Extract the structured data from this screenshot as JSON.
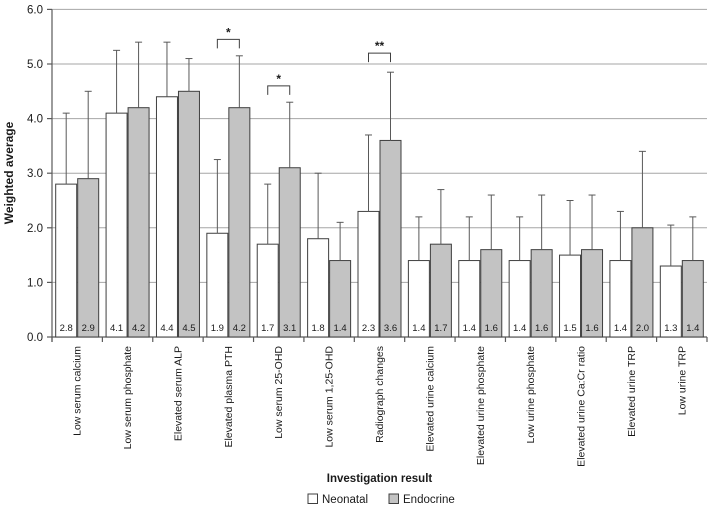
{
  "chart_data": {
    "type": "bar",
    "title": "",
    "xlabel": "Investigation result",
    "ylabel": "Weighted average",
    "ylim": [
      0,
      6
    ],
    "ytick_interval": 1.0,
    "ytick_labels": [
      "0.0",
      "1.0",
      "2.0",
      "3.0",
      "4.0",
      "5.0",
      "6.0"
    ],
    "grid": "horizontal",
    "legend_position": "bottom-center",
    "value_label_format": "one-decimal-inside-bar-bottom",
    "categories": [
      "Low serum calcium",
      "Low serum phosphate",
      "Elevated serum ALP",
      "Elevated plasma PTH",
      "Low serum 25-OHD",
      "Low serum 1,25-OHD",
      "Radiograph changes",
      "Elevated urine calcium",
      "Elevated urine phosphate",
      "Low urine phosphate",
      "Elevated urine Ca:Cr ratio",
      "Elevated urine TRP",
      "Low urine TRP"
    ],
    "series": [
      {
        "name": "Neonatal",
        "fill": "#ffffff",
        "values": [
          2.8,
          4.1,
          4.4,
          1.9,
          1.7,
          1.8,
          2.3,
          1.4,
          1.4,
          1.4,
          1.5,
          1.4,
          1.3
        ],
        "error_bar_tops": [
          4.1,
          5.25,
          5.4,
          3.25,
          2.8,
          3.0,
          3.7,
          2.2,
          2.2,
          2.2,
          2.5,
          2.3,
          2.05
        ]
      },
      {
        "name": "Endocrine",
        "fill": "#c3c3c3",
        "values": [
          2.9,
          4.2,
          4.5,
          4.2,
          3.1,
          1.4,
          3.6,
          1.7,
          1.6,
          1.6,
          1.6,
          2.0,
          1.4
        ],
        "error_bar_tops": [
          4.5,
          5.4,
          5.1,
          5.15,
          4.3,
          2.1,
          4.85,
          2.7,
          2.6,
          2.6,
          2.6,
          3.4,
          2.2
        ]
      }
    ],
    "significance_markers": [
      {
        "category": "Elevated plasma PTH",
        "category_index": 3,
        "label": "*",
        "bracket_top": 5.45
      },
      {
        "category": "Low serum 25-OHD",
        "category_index": 4,
        "label": "*",
        "bracket_top": 4.6
      },
      {
        "category": "Radiograph changes",
        "category_index": 6,
        "label": "**",
        "bracket_top": 5.2
      }
    ],
    "colors": {
      "neonatal_fill": "#ffffff",
      "endocrine_fill": "#c3c3c3",
      "bar_border": "#3f3f3f",
      "error_bar": "#595959",
      "gridline": "#a6a6a6",
      "axis": "#595959",
      "text": "#1a1a1a",
      "background": "#ffffff"
    }
  }
}
